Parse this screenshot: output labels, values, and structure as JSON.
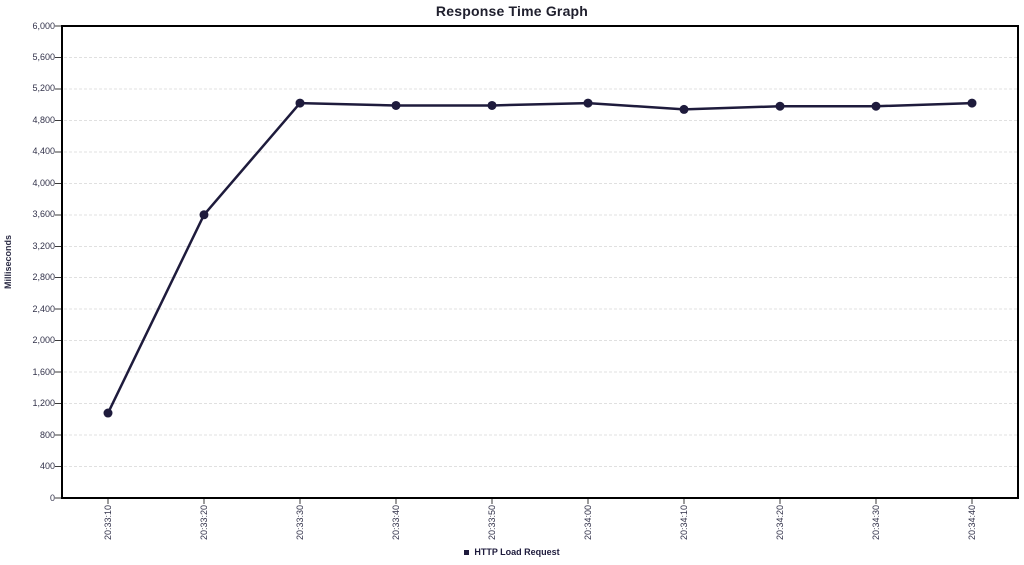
{
  "page": {
    "background": "#ffffff"
  },
  "chart_data": {
    "type": "line",
    "title": "Response Time Graph",
    "ylabel": "Milliseconds",
    "xlabel": "",
    "categories": [
      "20:33:10",
      "20:33:20",
      "20:33:30",
      "20:33:40",
      "20:33:50",
      "20:34:00",
      "20:34:10",
      "20:34:20",
      "20:34:30",
      "20:34:40"
    ],
    "series": [
      {
        "name": "HTTP Load Request",
        "values": [
          1080,
          3600,
          5020,
          4990,
          4990,
          5020,
          4940,
          4980,
          4980,
          5020
        ]
      }
    ],
    "ylim": [
      0,
      6000
    ],
    "ytick_step": 400,
    "ytick_labels": [
      "0",
      "400",
      "800",
      "1,200",
      "1,600",
      "2,000",
      "2,400",
      "2,800",
      "3,200",
      "3,600",
      "4,000",
      "4,400",
      "4,800",
      "5,200",
      "5,600",
      "6,000"
    ],
    "grid": true,
    "legend_position": "bottom",
    "colors": {
      "series": "#1e1b3c",
      "grid": "#e0e0e0",
      "axis_border": "#000000",
      "tick": "#3a3a3a",
      "label_text": "#32324a",
      "title_text": "#20202e"
    }
  }
}
